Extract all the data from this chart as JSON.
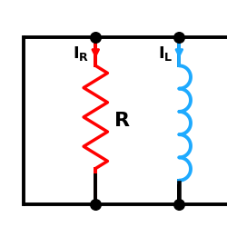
{
  "bg_color": "#ffffff",
  "line_color": "#000000",
  "resistor_color": "#ff0000",
  "inductor_color": "#1eaaff",
  "font_size": 13,
  "dot_color": "#000000",
  "line_width": 2.8,
  "resistor_lw": 2.5,
  "inductor_lw": 2.8
}
